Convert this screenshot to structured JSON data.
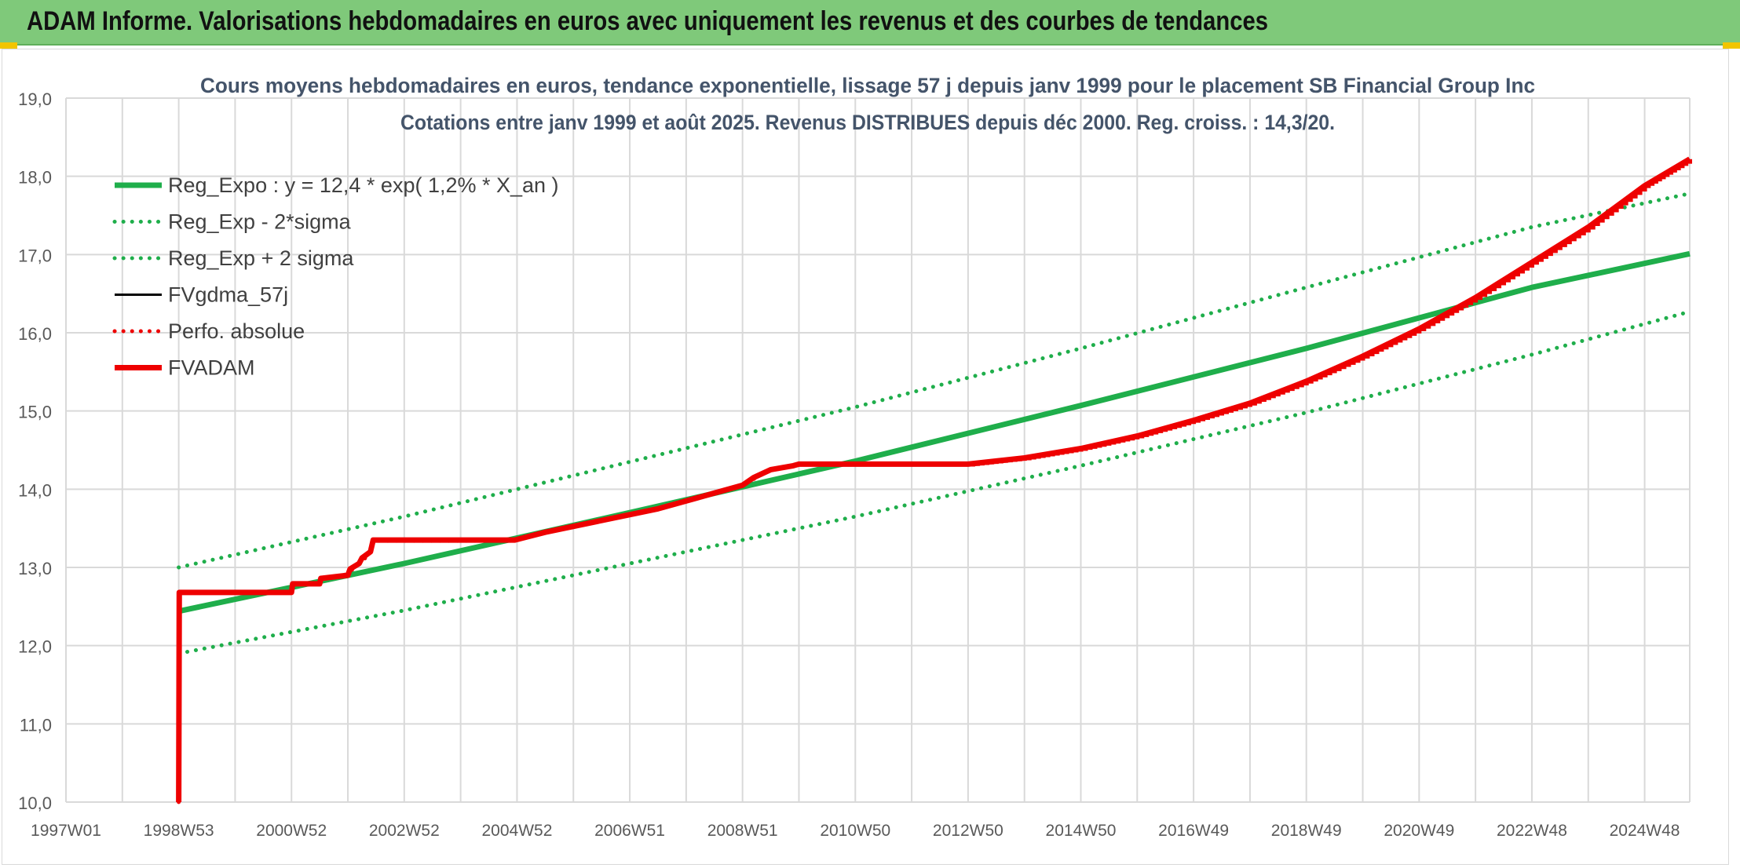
{
  "header": {
    "title": "ADAM Informe. Valorisations hebdomadaires en euros avec uniquement les revenus et des courbes de tendances"
  },
  "colors": {
    "banner": "#7fc97a",
    "green": "#1fae4b",
    "red": "#ee0000",
    "black": "#000000",
    "grid": "#d9d9d9"
  },
  "chart_data": {
    "type": "line",
    "title": "Cours moyens hebdomadaires en euros, tendance exponentielle, lissage 57 j depuis janv 1999 pour le placement SB Financial Group Inc",
    "subtitle": "Cotations entre janv 1999 et août 2025. Revenus DISTRIBUES depuis déc 2000. Reg. croiss. : 14,3/20.",
    "xlabel": "",
    "ylabel": "",
    "ylim": [
      10,
      19
    ],
    "xlim": [
      1997.0,
      2025.8
    ],
    "grid": true,
    "legend_position": "top-left",
    "x_ticks": [
      {
        "label": "1997W01",
        "x": 1997.0
      },
      {
        "label": "1998W53",
        "x": 1999.0
      },
      {
        "label": "2000W52",
        "x": 2001.0
      },
      {
        "label": "2002W52",
        "x": 2003.0
      },
      {
        "label": "2004W52",
        "x": 2005.0
      },
      {
        "label": "2006W51",
        "x": 2007.0
      },
      {
        "label": "2008W51",
        "x": 2009.0
      },
      {
        "label": "2010W50",
        "x": 2011.0
      },
      {
        "label": "2012W50",
        "x": 2013.0
      },
      {
        "label": "2014W50",
        "x": 2015.0
      },
      {
        "label": "2016W49",
        "x": 2017.0
      },
      {
        "label": "2018W49",
        "x": 2019.0
      },
      {
        "label": "2020W49",
        "x": 2021.0
      },
      {
        "label": "2022W48",
        "x": 2023.0
      },
      {
        "label": "2024W48",
        "x": 2025.0
      }
    ],
    "y_ticks": [
      {
        "label": "10,0",
        "y": 10
      },
      {
        "label": "11,0",
        "y": 11
      },
      {
        "label": "12,0",
        "y": 12
      },
      {
        "label": "13,0",
        "y": 13
      },
      {
        "label": "14,0",
        "y": 14
      },
      {
        "label": "15,0",
        "y": 15
      },
      {
        "label": "16,0",
        "y": 16
      },
      {
        "label": "17,0",
        "y": 17
      },
      {
        "label": "18,0",
        "y": 18
      },
      {
        "label": "19,0",
        "y": 19
      }
    ],
    "series": [
      {
        "name": "Reg_Expo : y = 12,4 * exp( 1,2% *  X_an )",
        "style": "solid-thick",
        "color": "#1fae4b",
        "x": [
          1999.0,
          2003.0,
          2007.0,
          2011.0,
          2015.0,
          2019.0,
          2023.0,
          2025.8
        ],
        "y": [
          12.44,
          13.05,
          13.7,
          14.36,
          15.07,
          15.8,
          16.58,
          17.01
        ]
      },
      {
        "name": "Reg_Exp - 2*sigma",
        "style": "dotted",
        "color": "#1fae4b",
        "x": [
          1999.0,
          2003.0,
          2007.0,
          2011.0,
          2015.0,
          2019.0,
          2023.0,
          2025.8
        ],
        "y": [
          11.9,
          12.45,
          13.05,
          13.65,
          14.3,
          14.98,
          15.72,
          16.27
        ]
      },
      {
        "name": "Reg_Exp + 2 sigma",
        "style": "dotted",
        "color": "#1fae4b",
        "x": [
          1999.0,
          2003.0,
          2007.0,
          2011.0,
          2015.0,
          2019.0,
          2023.0,
          2025.8
        ],
        "y": [
          13.0,
          13.65,
          14.35,
          15.05,
          15.8,
          16.58,
          17.35,
          17.78
        ]
      },
      {
        "name": "FVgdma_57j",
        "style": "solid",
        "color": "#000000",
        "x": [
          1999.0,
          1999.01,
          2001.0,
          2001.02,
          2001.5,
          2001.52,
          2002.0,
          2002.04,
          2002.2,
          2002.25,
          2002.4,
          2002.45,
          2004.96,
          2005.5,
          2006.5,
          2007.5,
          2008.5,
          2009.0,
          2009.2,
          2009.5,
          2009.9,
          2010.0,
          2013.0,
          2014.0,
          2015.0,
          2016.0,
          2017.0,
          2018.0,
          2019.0,
          2020.0,
          2021.0,
          2022.0,
          2023.0,
          2024.0,
          2025.0,
          2025.8
        ],
        "y": [
          10.0,
          12.68,
          12.68,
          12.79,
          12.79,
          12.86,
          12.9,
          12.98,
          13.05,
          13.12,
          13.2,
          13.35,
          13.35,
          13.45,
          13.6,
          13.75,
          13.95,
          14.05,
          14.15,
          14.25,
          14.3,
          14.32,
          14.32,
          14.4,
          14.52,
          14.68,
          14.88,
          15.1,
          15.38,
          15.7,
          16.05,
          16.45,
          16.9,
          17.35,
          17.88,
          18.22
        ]
      },
      {
        "name": "Perfo. absolue",
        "style": "dotted",
        "color": "#ee0000",
        "x": [
          1999.0,
          1999.01,
          2001.0,
          2001.02,
          2001.5,
          2002.0,
          2002.4,
          2002.45,
          2004.96,
          2005.5,
          2006.5,
          2007.5,
          2008.5,
          2009.0,
          2009.5,
          2010.0,
          2013.0,
          2014.0,
          2015.0,
          2016.0,
          2017.0,
          2018.0,
          2019.0,
          2020.0,
          2021.0,
          2022.0,
          2023.0,
          2024.0,
          2025.0,
          2025.8
        ],
        "y": [
          10.0,
          12.68,
          12.68,
          12.78,
          12.8,
          12.92,
          13.18,
          13.34,
          13.34,
          13.45,
          13.6,
          13.75,
          13.95,
          14.05,
          14.25,
          14.32,
          14.32,
          14.4,
          14.52,
          14.68,
          14.88,
          15.1,
          15.38,
          15.7,
          16.05,
          16.45,
          16.9,
          17.35,
          17.88,
          18.22
        ]
      },
      {
        "name": "FVADAM",
        "style": "solid-thick",
        "color": "#ee0000",
        "x": [
          1999.0,
          1999.01,
          2001.0,
          2001.02,
          2001.5,
          2001.52,
          2002.0,
          2002.04,
          2002.2,
          2002.25,
          2002.4,
          2002.45,
          2004.96,
          2005.5,
          2006.5,
          2007.5,
          2008.5,
          2009.0,
          2009.2,
          2009.5,
          2009.9,
          2010.0,
          2013.0,
          2014.0,
          2015.0,
          2016.0,
          2017.0,
          2018.0,
          2019.0,
          2020.0,
          2021.0,
          2022.0,
          2023.0,
          2024.0,
          2025.0,
          2025.8
        ],
        "y": [
          10.0,
          12.68,
          12.68,
          12.79,
          12.79,
          12.86,
          12.9,
          12.98,
          13.05,
          13.12,
          13.2,
          13.35,
          13.35,
          13.45,
          13.6,
          13.75,
          13.95,
          14.05,
          14.15,
          14.25,
          14.3,
          14.32,
          14.32,
          14.4,
          14.52,
          14.68,
          14.88,
          15.1,
          15.38,
          15.7,
          16.05,
          16.45,
          16.9,
          17.35,
          17.88,
          18.22
        ]
      }
    ]
  }
}
